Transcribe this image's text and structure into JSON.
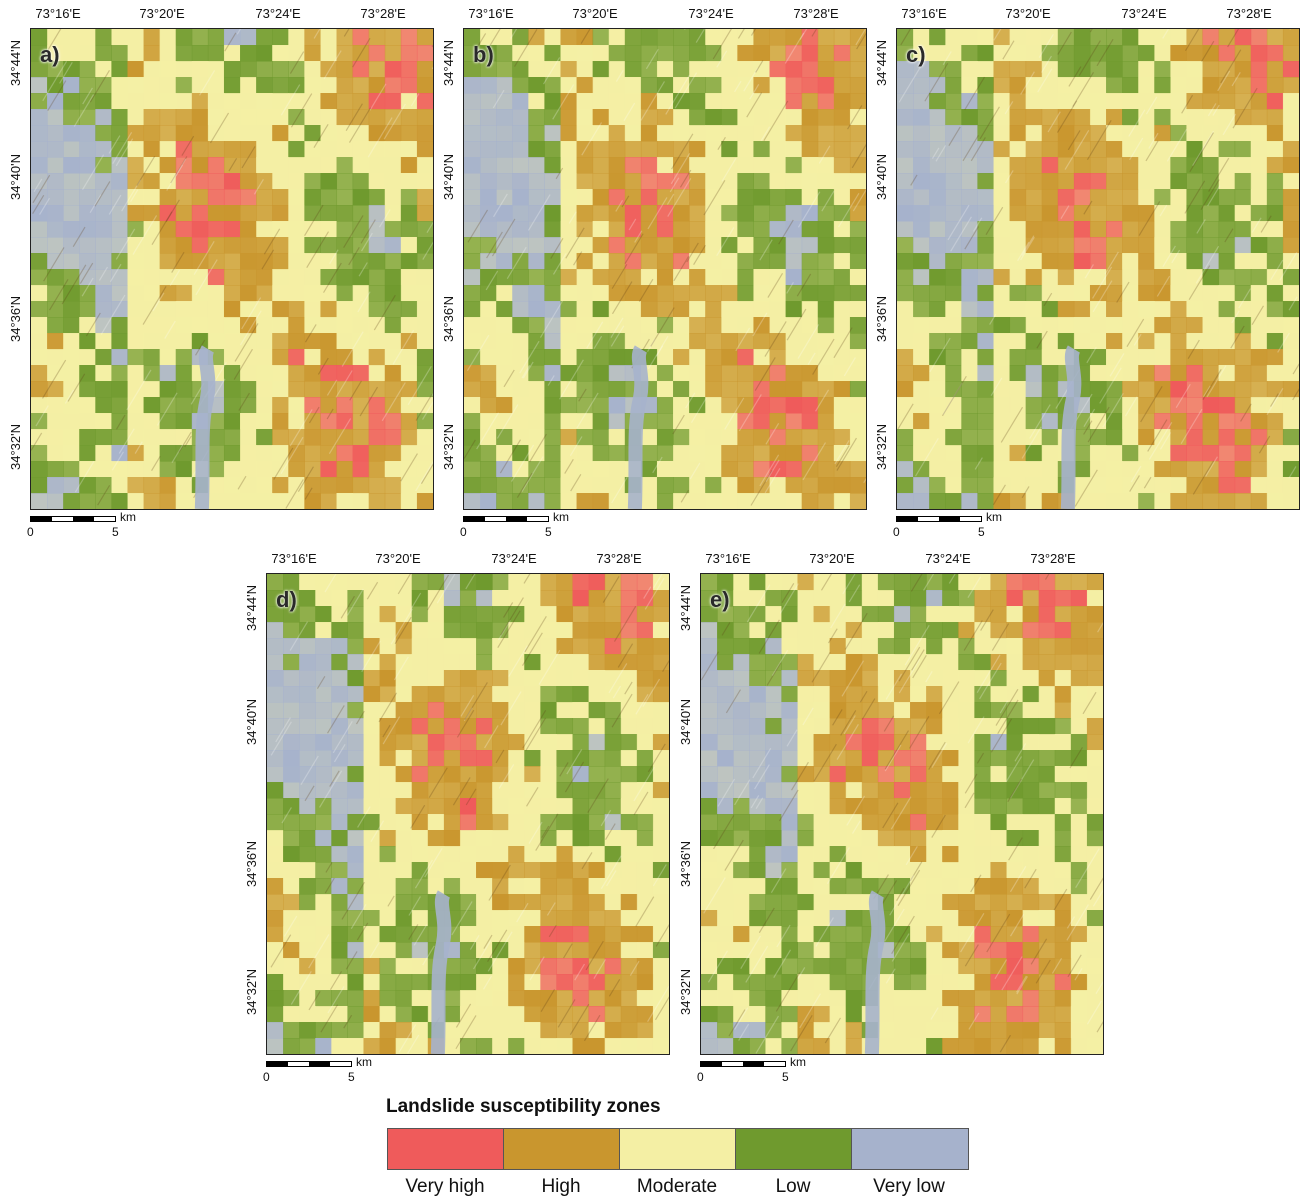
{
  "lon_labels": [
    "73°16'E",
    "73°20'E",
    "73°24'E",
    "73°28'E"
  ],
  "lat_labels": [
    "34°44'N",
    "34°40'N",
    "34°36'N",
    "34°32'N"
  ],
  "scale": {
    "unit": "km",
    "ticks": [
      "0",
      "5"
    ]
  },
  "panels": [
    {
      "id": "a",
      "label": "a)"
    },
    {
      "id": "b",
      "label": "b)"
    },
    {
      "id": "c",
      "label": "c)"
    },
    {
      "id": "d",
      "label": "d)"
    },
    {
      "id": "e",
      "label": "e)"
    }
  ],
  "legend": {
    "title": "Landslide susceptibility zones",
    "classes": [
      {
        "label": "Very high",
        "color": "#ef5b5b"
      },
      {
        "label": "High",
        "color": "#c9962e"
      },
      {
        "label": "Moderate",
        "color": "#f4efa4"
      },
      {
        "label": "Low",
        "color": "#6f9a2e"
      },
      {
        "label": "Very low",
        "color": "#a6b2cc"
      }
    ]
  }
}
